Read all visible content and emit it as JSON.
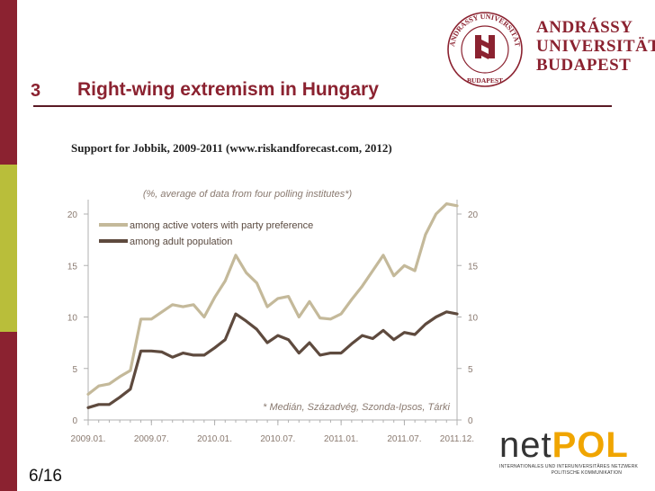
{
  "slide": {
    "number": "3",
    "title": "Right-wing extremism in Hungary",
    "subtitle": "Support for Jobbik, 2009-2011 (www.riskandforecast.com, 2012)",
    "page_counter": "6/16"
  },
  "university": {
    "name_lines": [
      "ANDRÁSSY",
      "UNIVERSITÄT",
      "BUDAPEST"
    ],
    "seal_text": "ANDRÁSSY UNIVERSITÄT BUDAPEST"
  },
  "netpol": {
    "net": "net",
    "pol": "POL",
    "tagline": "INTERNATIONALES UND INTERUNIVERSITÄRES NETZWERK",
    "tagline2": "POLITISCHE KOMMUNIKATION"
  },
  "colors": {
    "accent": "#8b2230",
    "green": "#b9be3a",
    "series_light": "#c4b99a",
    "series_dark": "#5e4a3e"
  },
  "chart_data": {
    "type": "line",
    "note_top": "(%, average of data from four polling institutes*)",
    "footnote": "* Medián, Századvég, Szonda-Ipsos, Tárki",
    "x_tick_labels": [
      "2009.01.",
      "2009.07.",
      "2010.01.",
      "2010.07.",
      "2011.01.",
      "2011.07.",
      "2011.12."
    ],
    "x_tick_index": [
      0,
      6,
      12,
      18,
      24,
      30,
      35
    ],
    "y_ticks": [
      0,
      5,
      10,
      15,
      20
    ],
    "ylim": [
      0,
      20
    ],
    "legend_position": "top-left",
    "series": [
      {
        "name": "among active voters  with party preference",
        "color": "#c4b99a",
        "values": [
          2.5,
          3.3,
          3.5,
          4.2,
          4.8,
          9.8,
          9.8,
          10.5,
          11.2,
          11.0,
          11.2,
          10.0,
          11.9,
          13.5,
          16.0,
          14.3,
          13.3,
          11.0,
          11.8,
          12.0,
          10.0,
          11.5,
          9.9,
          9.8,
          10.3,
          11.7,
          13.0,
          14.5,
          16.0,
          14.0,
          15.0,
          14.5,
          18.0,
          20.0,
          21.0,
          20.8
        ]
      },
      {
        "name": "among adult population",
        "color": "#5e4a3e",
        "values": [
          1.2,
          1.5,
          1.5,
          2.2,
          3.0,
          6.7,
          6.7,
          6.6,
          6.1,
          6.5,
          6.3,
          6.3,
          7.0,
          7.8,
          10.3,
          9.6,
          8.8,
          7.5,
          8.2,
          7.8,
          6.5,
          7.5,
          6.3,
          6.5,
          6.5,
          7.4,
          8.2,
          7.9,
          8.7,
          7.8,
          8.5,
          8.3,
          9.3,
          10.0,
          10.5,
          10.3
        ]
      }
    ]
  }
}
